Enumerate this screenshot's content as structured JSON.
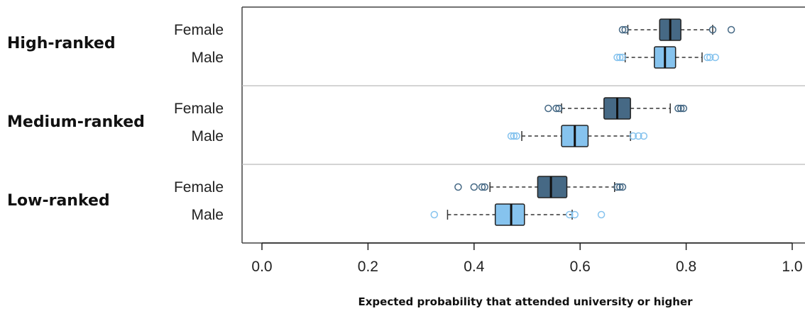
{
  "chart_data": {
    "type": "boxplot",
    "orientation": "horizontal",
    "xlabel": "Expected probability that attended university or higher",
    "xlim": [
      0.0,
      1.0
    ],
    "xticks": [
      "0.0",
      "0.2",
      "0.4",
      "0.6",
      "0.8",
      "1.0"
    ],
    "colors": {
      "Female": "#466985",
      "Male": "#86c3ee"
    },
    "groups": [
      {
        "name": "High-ranked",
        "series": [
          {
            "label": "Female",
            "whisker_low": 0.69,
            "q1": 0.75,
            "median": 0.77,
            "q3": 0.79,
            "whisker_high": 0.85,
            "outliers": [
              0.68,
              0.685,
              0.85,
              0.885
            ]
          },
          {
            "label": "Male",
            "whisker_low": 0.685,
            "q1": 0.74,
            "median": 0.76,
            "q3": 0.78,
            "whisker_high": 0.83,
            "outliers": [
              0.67,
              0.675,
              0.68,
              0.84,
              0.845,
              0.855
            ]
          }
        ]
      },
      {
        "name": "Medium-ranked",
        "series": [
          {
            "label": "Female",
            "whisker_low": 0.565,
            "q1": 0.645,
            "median": 0.67,
            "q3": 0.695,
            "whisker_high": 0.77,
            "outliers": [
              0.54,
              0.555,
              0.56,
              0.785,
              0.79,
              0.795
            ]
          },
          {
            "label": "Male",
            "whisker_low": 0.49,
            "q1": 0.565,
            "median": 0.59,
            "q3": 0.615,
            "whisker_high": 0.695,
            "outliers": [
              0.47,
              0.475,
              0.48,
              0.7,
              0.71,
              0.72
            ]
          }
        ]
      },
      {
        "name": "Low-ranked",
        "series": [
          {
            "label": "Female",
            "whisker_low": 0.43,
            "q1": 0.52,
            "median": 0.545,
            "q3": 0.575,
            "whisker_high": 0.665,
            "outliers": [
              0.37,
              0.4,
              0.415,
              0.42,
              0.67,
              0.675,
              0.68
            ]
          },
          {
            "label": "Male",
            "whisker_low": 0.35,
            "q1": 0.44,
            "median": 0.47,
            "q3": 0.495,
            "whisker_high": 0.585,
            "outliers": [
              0.325,
              0.58,
              0.59,
              0.64
            ]
          }
        ]
      }
    ]
  }
}
